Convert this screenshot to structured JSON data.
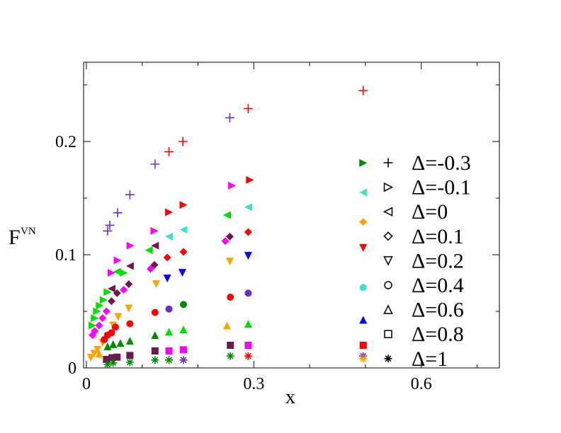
{
  "chart_data": {
    "type": "scatter",
    "x_label": "x",
    "y_label": "F",
    "y_label_sup": "VN",
    "xlim": [
      -0.005,
      0.74
    ],
    "ylim": [
      0,
      0.27
    ],
    "xticks": [
      0,
      0.3,
      0.6
    ],
    "yticks": [
      0,
      0.1,
      0.2
    ],
    "xminor": [
      0.1,
      0.2,
      0.4,
      0.5,
      0.7
    ],
    "yminor": [
      0.05,
      0.15,
      0.25
    ],
    "legend": "right",
    "series": [
      {
        "name": "Δ=-0.3",
        "marker": "plus",
        "x": [
          0.038,
          0.042,
          0.056,
          0.078,
          0.123,
          0.148,
          0.173,
          0.257,
          0.29,
          0.496
        ],
        "values": [
          0.121,
          0.126,
          0.137,
          0.153,
          0.18,
          0.191,
          0.2,
          0.221,
          0.229,
          0.245
        ],
        "colors": [
          "#6a2ec1",
          "#6a2ec1",
          "#6a2ec1",
          "#6a2ec1",
          "#6a2ec1",
          "#ff0000",
          "#ff0000",
          "#6a2ec1",
          "#ff0000",
          "#ff0000"
        ]
      },
      {
        "name": "Δ=-0.1",
        "marker": "right",
        "x": [
          0.011,
          0.015,
          0.019,
          0.024,
          0.031,
          0.038,
          0.045,
          0.056,
          0.067,
          0.079,
          0.122,
          0.148,
          0.174,
          0.261,
          0.293,
          0.496
        ],
        "values": [
          0.0375,
          0.044,
          0.05,
          0.055,
          0.06,
          0.067,
          0.084,
          0.095,
          0.084,
          0.108,
          0.121,
          0.1375,
          0.144,
          0.161,
          0.166,
          0.181
        ],
        "colors": [
          "#00dd00",
          "#00dd00",
          "#00dd00",
          "#00dd00",
          "#00dd00",
          "#00dd00",
          "#ff00ff",
          "#ff00ff",
          "#00dd00",
          "#ff00ff",
          "#ff00ff",
          "#ff0000",
          "#ff0000",
          "#ff00ff",
          "#ff0000",
          "#008b00"
        ]
      },
      {
        "name": "Δ=0",
        "marker": "left",
        "x": [
          0.045,
          0.055,
          0.078,
          0.112,
          0.123,
          0.148,
          0.174,
          0.252,
          0.29,
          0.496
        ],
        "values": [
          0.07,
          0.085,
          0.09,
          0.104,
          0.108,
          0.116,
          0.122,
          0.135,
          0.142,
          0.155
        ],
        "colors": [
          "#6b1a4d",
          "#00dd00",
          "#6b1a4d",
          "#00dd00",
          "#6b1a4d",
          "#40e0d0",
          "#40e0d0",
          "#00dd00",
          "#40e0d0",
          "#40e0d0"
        ]
      },
      {
        "name": "Δ=0.1",
        "marker": "diamond",
        "x": [
          0.011,
          0.015,
          0.023,
          0.029,
          0.036,
          0.045,
          0.055,
          0.067,
          0.076,
          0.115,
          0.122,
          0.145,
          0.174,
          0.249,
          0.257,
          0.29,
          0.496
        ],
        "values": [
          0.029,
          0.0325,
          0.0375,
          0.044,
          0.05,
          0.059,
          0.066,
          0.069,
          0.074,
          0.0875,
          0.091,
          0.0975,
          0.1025,
          0.112,
          0.116,
          0.12,
          0.129
        ],
        "colors": [
          "#ff00ff",
          "#ff00ff",
          "#ff00ff",
          "#ff00ff",
          "#ff00ff",
          "#6b1a4d",
          "#6b1a4d",
          "#ff00ff",
          "#6b1a4d",
          "#ff00ff",
          "#6b1a4d",
          "#ff0000",
          "#ff0000",
          "#ff00ff",
          "#6b1a4d",
          "#ff0000",
          "#ffa500"
        ]
      },
      {
        "name": "Δ=0.2",
        "marker": "down",
        "x": [
          0.008,
          0.014,
          0.02,
          0.029,
          0.038,
          0.048,
          0.057,
          0.076,
          0.125,
          0.145,
          0.172,
          0.257,
          0.29,
          0.496
        ],
        "values": [
          0.009,
          0.0125,
          0.016,
          0.022,
          0.028,
          0.0375,
          0.045,
          0.0525,
          0.074,
          0.079,
          0.084,
          0.094,
          0.099,
          0.106
        ],
        "colors": [
          "#ffa500",
          "#ffa500",
          "#ffa500",
          "#ffa500",
          "#ffa500",
          "#ffa500",
          "#ffa500",
          "#ffa500",
          "#ffa500",
          "#0000ff",
          "#0000ff",
          "#ffa500",
          "#0000ff",
          "#ff0000"
        ]
      },
      {
        "name": "Δ=0.4",
        "marker": "circle",
        "x": [
          0.032,
          0.038,
          0.045,
          0.052,
          0.078,
          0.123,
          0.148,
          0.174,
          0.258,
          0.29,
          0.496
        ],
        "values": [
          0.025,
          0.029,
          0.031,
          0.036,
          0.039,
          0.049,
          0.052,
          0.056,
          0.0625,
          0.066,
          0.071
        ],
        "colors": [
          "#ff0000",
          "#ff0000",
          "#ff0000",
          "#ff0000",
          "#ff0000",
          "#ff0000",
          "#6a2ec1",
          "#008b00",
          "#ff0000",
          "#6a2ec1",
          "#40e0d0"
        ]
      },
      {
        "name": "Δ=0.6",
        "marker": "up",
        "x": [
          0.023,
          0.038,
          0.048,
          0.061,
          0.078,
          0.123,
          0.148,
          0.174,
          0.252,
          0.29,
          0.496
        ],
        "values": [
          0.0125,
          0.019,
          0.021,
          0.022,
          0.024,
          0.029,
          0.032,
          0.034,
          0.0375,
          0.039,
          0.0425
        ],
        "colors": [
          "#ffa500",
          "#008b00",
          "#008b00",
          "#008b00",
          "#008b00",
          "#008b00",
          "#00dd00",
          "#00dd00",
          "#ffa500",
          "#00dd00",
          "#0000ff"
        ]
      },
      {
        "name": "Δ=0.8",
        "marker": "square",
        "x": [
          0.036,
          0.046,
          0.055,
          0.078,
          0.123,
          0.148,
          0.174,
          0.258,
          0.29,
          0.496
        ],
        "values": [
          0.0075,
          0.009,
          0.0095,
          0.011,
          0.015,
          0.015,
          0.016,
          0.02,
          0.02,
          0.02
        ],
        "colors": [
          "#6b1a4d",
          "#6b1a4d",
          "#6b1a4d",
          "#6b1a4d",
          "#6b1a4d",
          "#ff00ff",
          "#ff00ff",
          "#6b1a4d",
          "#ff00ff",
          "#ff0000"
        ]
      },
      {
        "name": "Δ=1",
        "marker": "star",
        "x": [
          0.038,
          0.048,
          0.078,
          0.123,
          0.148,
          0.174,
          0.258,
          0.29,
          0.496,
          0.496
        ],
        "values": [
          0.003,
          0.0045,
          0.005,
          0.007,
          0.007,
          0.007,
          0.0105,
          0.0105,
          0.0105,
          0.008
        ],
        "colors": [
          "#008b00",
          "#008b00",
          "#008b00",
          "#008b00",
          "#008b00",
          "#6a2ec1",
          "#008b00",
          "#ff0000",
          "#6a2ec1",
          "#ffa500"
        ]
      }
    ]
  }
}
